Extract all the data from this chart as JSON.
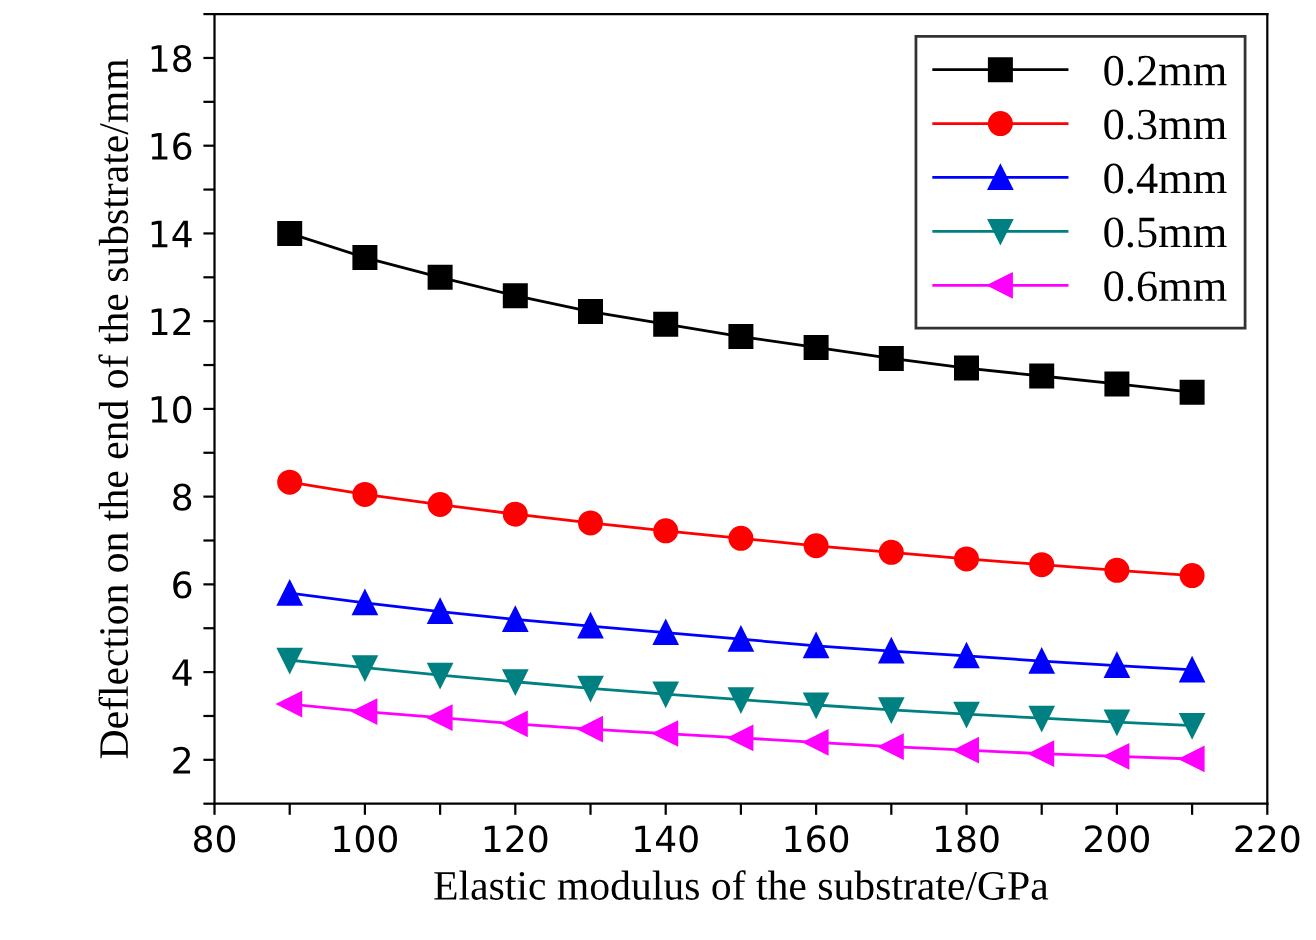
{
  "chart_data": {
    "type": "line",
    "xlabel": "Elastic modulus of the substrate/GPa",
    "ylabel": "Deflection on the end of the substrate/mm",
    "x": [
      90,
      100,
      110,
      120,
      130,
      140,
      150,
      160,
      170,
      180,
      190,
      200,
      210
    ],
    "series": [
      {
        "name": "0.2mm",
        "color": "#000000",
        "marker": "square",
        "values": [
          14.0,
          13.45,
          13.0,
          12.58,
          12.22,
          11.93,
          11.65,
          11.4,
          11.15,
          10.93,
          10.75,
          10.57,
          10.38
        ]
      },
      {
        "name": "0.3mm",
        "color": "#ff0000",
        "marker": "circle",
        "values": [
          8.33,
          8.05,
          7.82,
          7.6,
          7.4,
          7.22,
          7.05,
          6.88,
          6.73,
          6.58,
          6.45,
          6.32,
          6.2
        ]
      },
      {
        "name": "0.4mm",
        "color": "#0000ff",
        "marker": "triangle",
        "values": [
          5.8,
          5.58,
          5.38,
          5.2,
          5.05,
          4.9,
          4.75,
          4.6,
          4.48,
          4.37,
          4.25,
          4.15,
          4.05
        ]
      },
      {
        "name": "0.5mm",
        "color": "#008080",
        "marker": "triangle_down",
        "values": [
          4.27,
          4.1,
          3.93,
          3.78,
          3.63,
          3.5,
          3.37,
          3.25,
          3.14,
          3.04,
          2.95,
          2.86,
          2.78
        ]
      },
      {
        "name": "0.6mm",
        "color": "#ff00ff",
        "marker": "triangle_left",
        "values": [
          3.27,
          3.1,
          2.96,
          2.82,
          2.7,
          2.6,
          2.5,
          2.4,
          2.3,
          2.22,
          2.14,
          2.08,
          2.02
        ]
      }
    ],
    "xlim": [
      80,
      220
    ],
    "xticks": [
      80,
      {
        "value": 90,
        "label": null
      },
      100,
      {
        "value": 110,
        "label": null
      },
      120,
      {
        "value": 130,
        "label": null
      },
      140,
      {
        "value": 150,
        "label": null
      },
      160,
      {
        "value": 170,
        "label": null
      },
      180,
      {
        "value": 190,
        "label": null
      },
      200,
      {
        "value": 210,
        "label": null
      },
      220
    ],
    "ylim": [
      1,
      19
    ],
    "yticks": [
      {
        "value": 1,
        "label": null
      },
      2,
      {
        "value": 3,
        "label": null
      },
      4,
      {
        "value": 5,
        "label": null
      },
      6,
      {
        "value": 7,
        "label": null
      },
      8,
      {
        "value": 9,
        "label": null
      },
      10,
      {
        "value": 11,
        "label": null
      },
      12,
      {
        "value": 13,
        "label": null
      },
      14,
      {
        "value": 15,
        "label": null
      },
      16,
      {
        "value": 17,
        "label": null
      },
      18,
      {
        "value": 19,
        "label": null
      }
    ],
    "grid": false,
    "legend": "top right",
    "line_style": "solid"
  }
}
